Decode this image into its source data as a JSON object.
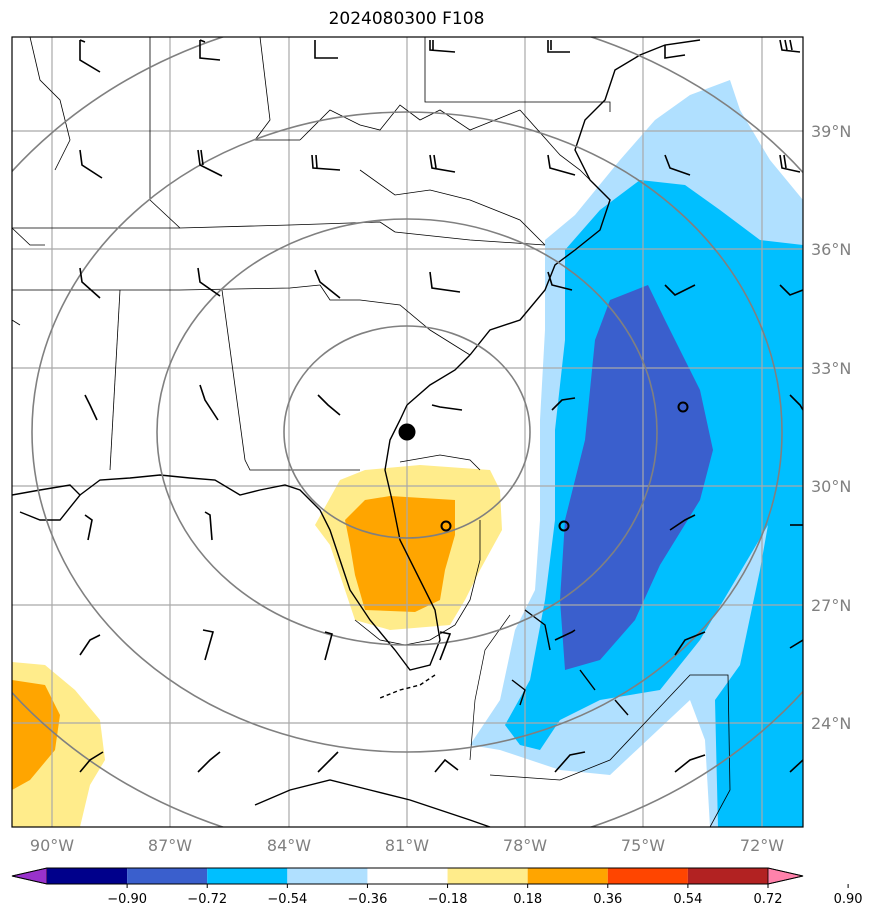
{
  "title": "2024080300 F108",
  "lon_labels": [
    "90°W",
    "87°W",
    "84°W",
    "81°W",
    "78°W",
    "75°W",
    "72°W"
  ],
  "lat_labels": [
    "39°N",
    "36°N",
    "33°N",
    "30°N",
    "27°N",
    "24°N"
  ],
  "colorbar": {
    "ticks": [
      "−0.90",
      "−0.72",
      "−0.54",
      "−0.36",
      "−0.18",
      "0.18",
      "0.36",
      "0.54",
      "0.72",
      "0.90"
    ],
    "colors": [
      "#9932cc",
      "#00008b",
      "#3a5fcd",
      "#00bfff",
      "#b0e0ff",
      "#ffffff",
      "#ffec8b",
      "#ffa500",
      "#ff4500",
      "#b22222",
      "#ff82ab"
    ]
  },
  "colors": {
    "dark_blue": "#3a5fcd",
    "blue": "#00bfff",
    "light_blue": "#b0e0ff",
    "yellow": "#ffec8b",
    "orange": "#ffa500",
    "grid": "#a9a9a9",
    "range_rings": "#808080"
  },
  "center_marker": {
    "lat": "31.4°N",
    "lon": "80.9°W"
  }
}
